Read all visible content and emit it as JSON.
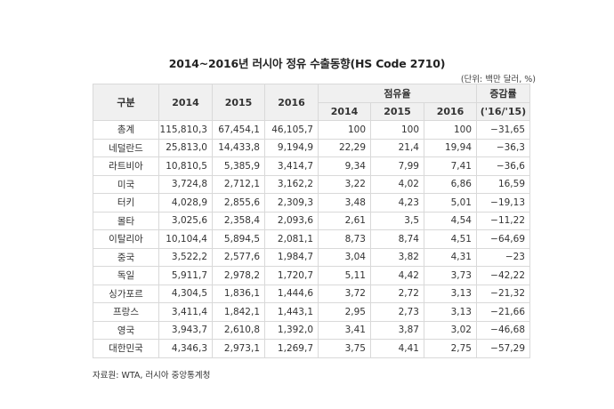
{
  "title": "2014~2016년 러시아 정유 수출동향(HS Code 2710)",
  "unit": "(단위: 백만 달러, %)",
  "header": {
    "category": "구분",
    "y2014": "2014",
    "y2015": "2015",
    "y2016": "2016",
    "share": "점유율",
    "share_2014": "2014",
    "share_2015": "2015",
    "share_2016": "2016",
    "change": "증감률",
    "change_period": "('16/'15)"
  },
  "rows": [
    {
      "name": "총계",
      "v2014": "115,810,3",
      "v2015": "67,454,1",
      "v2016": "46,105,7",
      "s2014": "100",
      "s2015": "100",
      "s2016": "100",
      "change": "−31,65"
    },
    {
      "name": "네덜란드",
      "v2014": "25,813,0",
      "v2015": "14,433,8",
      "v2016": "9,194,9",
      "s2014": "22,29",
      "s2015": "21,4",
      "s2016": "19,94",
      "change": "−36,3"
    },
    {
      "name": "라트비아",
      "v2014": "10,810,5",
      "v2015": "5,385,9",
      "v2016": "3,414,7",
      "s2014": "9,34",
      "s2015": "7,99",
      "s2016": "7,41",
      "change": "−36,6"
    },
    {
      "name": "미국",
      "v2014": "3,724,8",
      "v2015": "2,712,1",
      "v2016": "3,162,2",
      "s2014": "3,22",
      "s2015": "4,02",
      "s2016": "6,86",
      "change": "16,59"
    },
    {
      "name": "터키",
      "v2014": "4,028,9",
      "v2015": "2,855,6",
      "v2016": "2,309,3",
      "s2014": "3,48",
      "s2015": "4,23",
      "s2016": "5,01",
      "change": "−19,13"
    },
    {
      "name": "몰타",
      "v2014": "3,025,6",
      "v2015": "2,358,4",
      "v2016": "2,093,6",
      "s2014": "2,61",
      "s2015": "3,5",
      "s2016": "4,54",
      "change": "−11,22"
    },
    {
      "name": "이탈리아",
      "v2014": "10,104,4",
      "v2015": "5,894,5",
      "v2016": "2,081,1",
      "s2014": "8,73",
      "s2015": "8,74",
      "s2016": "4,51",
      "change": "−64,69"
    },
    {
      "name": "중국",
      "v2014": "3,522,2",
      "v2015": "2,577,6",
      "v2016": "1,984,7",
      "s2014": "3,04",
      "s2015": "3,82",
      "s2016": "4,31",
      "change": "−23"
    },
    {
      "name": "독일",
      "v2014": "5,911,7",
      "v2015": "2,978,2",
      "v2016": "1,720,7",
      "s2014": "5,11",
      "s2015": "4,42",
      "s2016": "3,73",
      "change": "−42,22"
    },
    {
      "name": "싱가포르",
      "v2014": "4,304,5",
      "v2015": "1,836,1",
      "v2016": "1,444,6",
      "s2014": "3,72",
      "s2015": "2,72",
      "s2016": "3,13",
      "change": "−21,32"
    },
    {
      "name": "프랑스",
      "v2014": "3,411,4",
      "v2015": "1,842,1",
      "v2016": "1,443,1",
      "s2014": "2,95",
      "s2015": "2,73",
      "s2016": "3,13",
      "change": "−21,66"
    },
    {
      "name": "영국",
      "v2014": "3,943,7",
      "v2015": "2,610,8",
      "v2016": "1,392,0",
      "s2014": "3,41",
      "s2015": "3,87",
      "s2016": "3,02",
      "change": "−46,68"
    },
    {
      "name": "대한민국",
      "v2014": "4,346,3",
      "v2015": "2,973,1",
      "v2016": "1,269,7",
      "s2014": "3,75",
      "s2015": "4,41",
      "s2016": "2,75",
      "change": "−57,29"
    }
  ],
  "source": "자료원: WTA, 러시아 중앙통계청"
}
